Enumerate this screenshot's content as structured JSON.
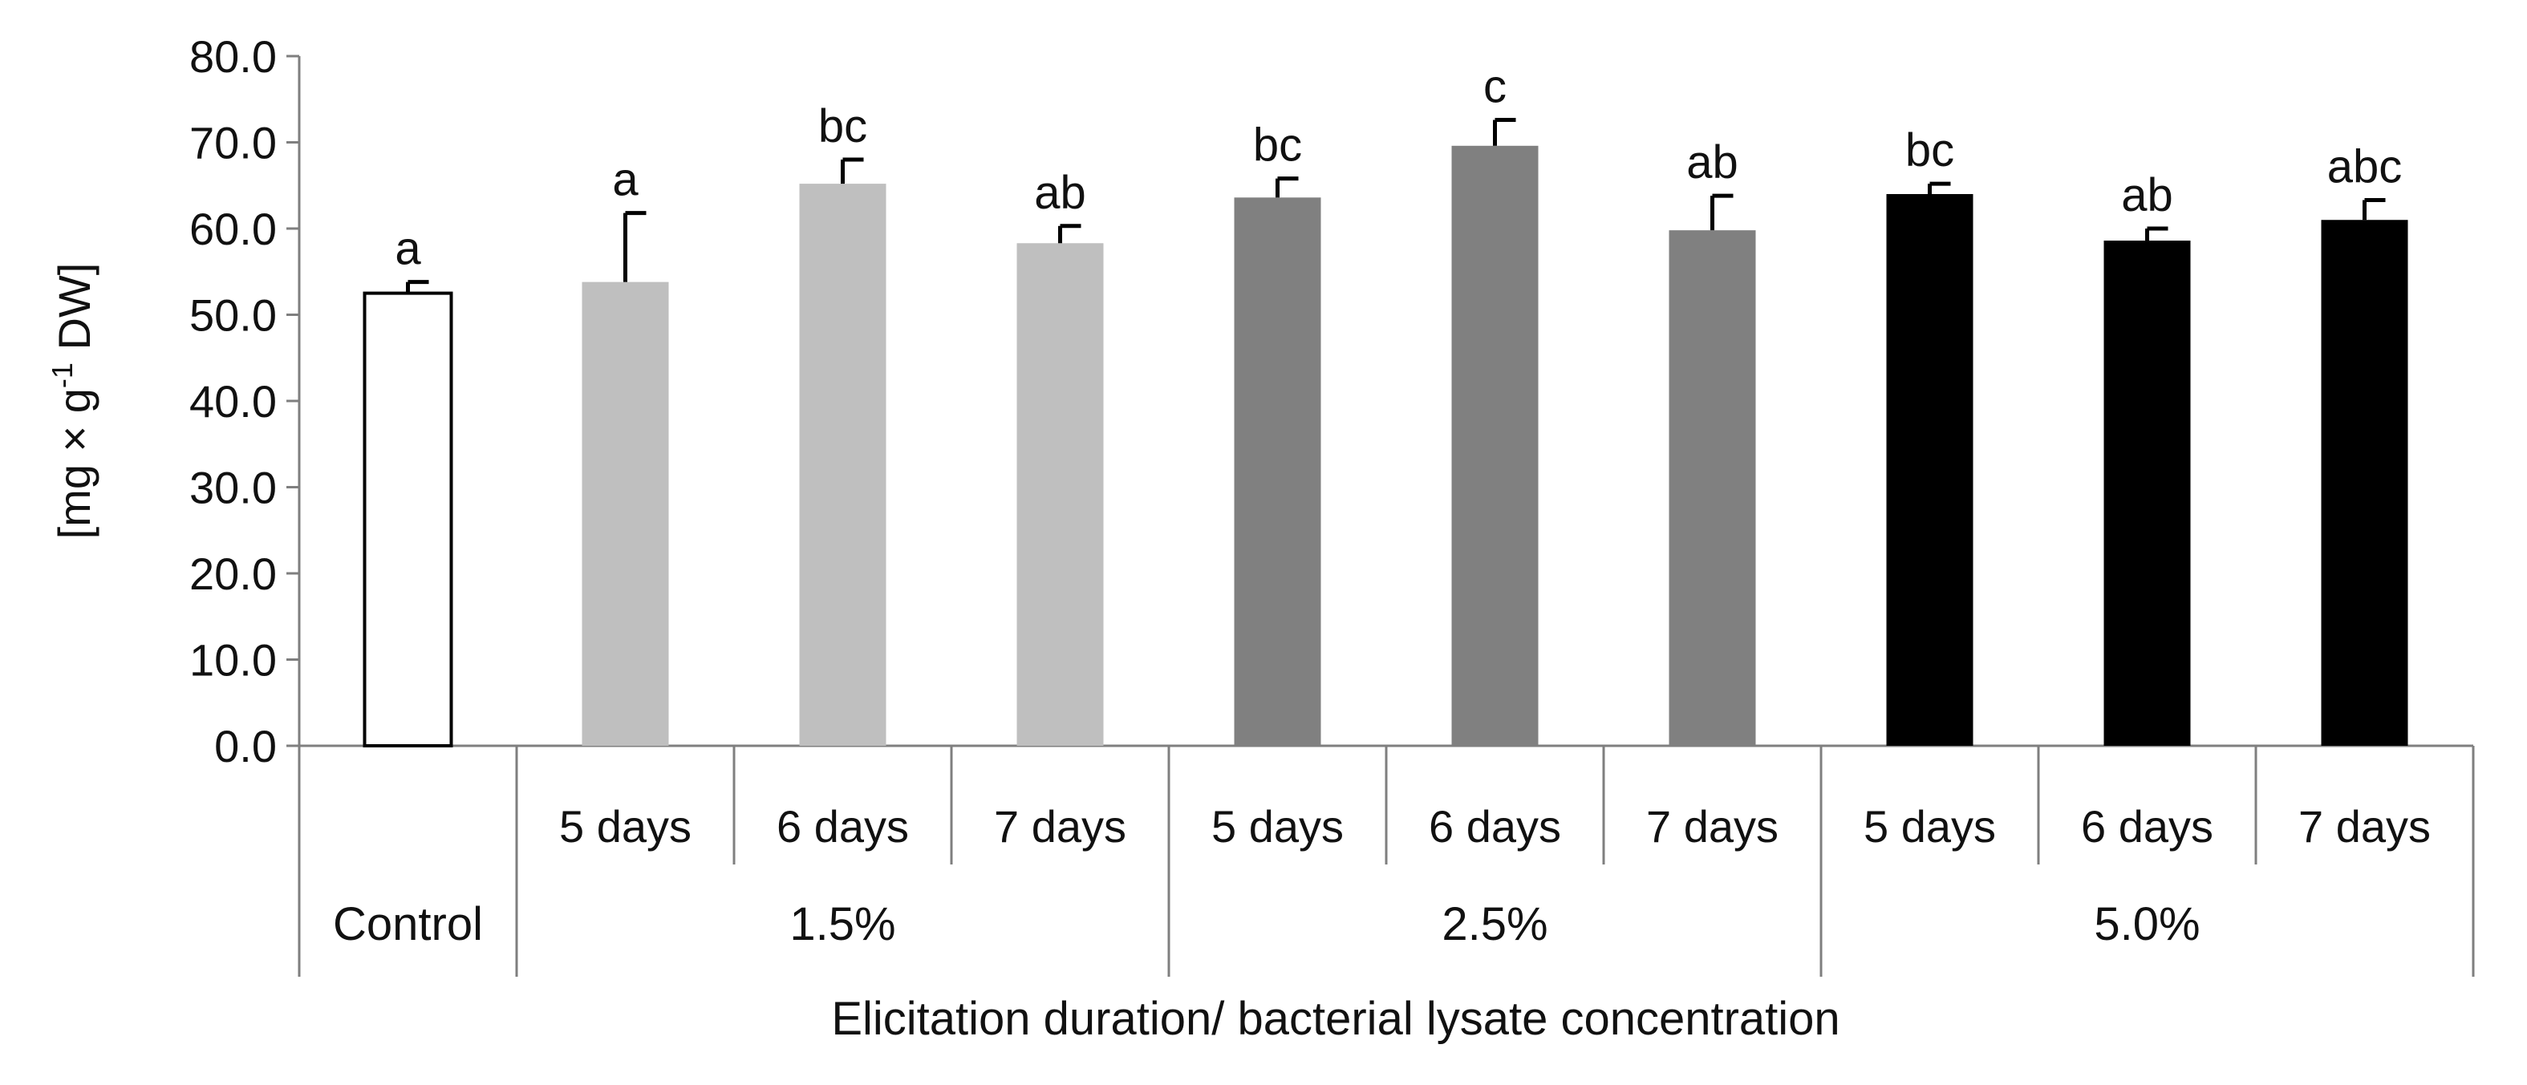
{
  "chart_data": {
    "type": "bar",
    "title": "",
    "ylabel": {
      "pre": "[mg × g",
      "sup": "-1",
      "post": " DW]"
    },
    "xlabel": "Elicitation duration/ bacterial lysate concentration",
    "ylim": [
      0,
      80
    ],
    "yticks": [
      0,
      10,
      20,
      30,
      40,
      50,
      60,
      70,
      80
    ],
    "ytick_labels": [
      "0.0",
      "10.0",
      "20.0",
      "30.0",
      "40.0",
      "50.0",
      "60.0",
      "70.0",
      "80.0"
    ],
    "grid": false,
    "groups": [
      {
        "label": "Control",
        "color": "#ffffff"
      },
      {
        "label": "1.5%",
        "color": "#bfbfbf"
      },
      {
        "label": "2.5%",
        "color": "#808080"
      },
      {
        "label": "5.0%",
        "color": "#000000"
      }
    ],
    "bars": [
      {
        "group": 0,
        "category": "",
        "value": 52.5,
        "error": 1.3,
        "letter": "a"
      },
      {
        "group": 1,
        "category": "5 days",
        "value": 53.8,
        "error": 8.0,
        "letter": "a"
      },
      {
        "group": 1,
        "category": "6 days",
        "value": 65.2,
        "error": 2.8,
        "letter": "bc"
      },
      {
        "group": 1,
        "category": "7 days",
        "value": 58.3,
        "error": 2.0,
        "letter": "ab"
      },
      {
        "group": 2,
        "category": "5 days",
        "value": 63.6,
        "error": 2.2,
        "letter": "bc"
      },
      {
        "group": 2,
        "category": "6 days",
        "value": 69.6,
        "error": 3.0,
        "letter": "c"
      },
      {
        "group": 2,
        "category": "7 days",
        "value": 59.8,
        "error": 4.0,
        "letter": "ab"
      },
      {
        "group": 3,
        "category": "5 days",
        "value": 64.0,
        "error": 1.2,
        "letter": "bc"
      },
      {
        "group": 3,
        "category": "6 days",
        "value": 58.6,
        "error": 1.4,
        "letter": "ab"
      },
      {
        "group": 3,
        "category": "7 days",
        "value": 61.0,
        "error": 2.3,
        "letter": "abc"
      }
    ]
  }
}
